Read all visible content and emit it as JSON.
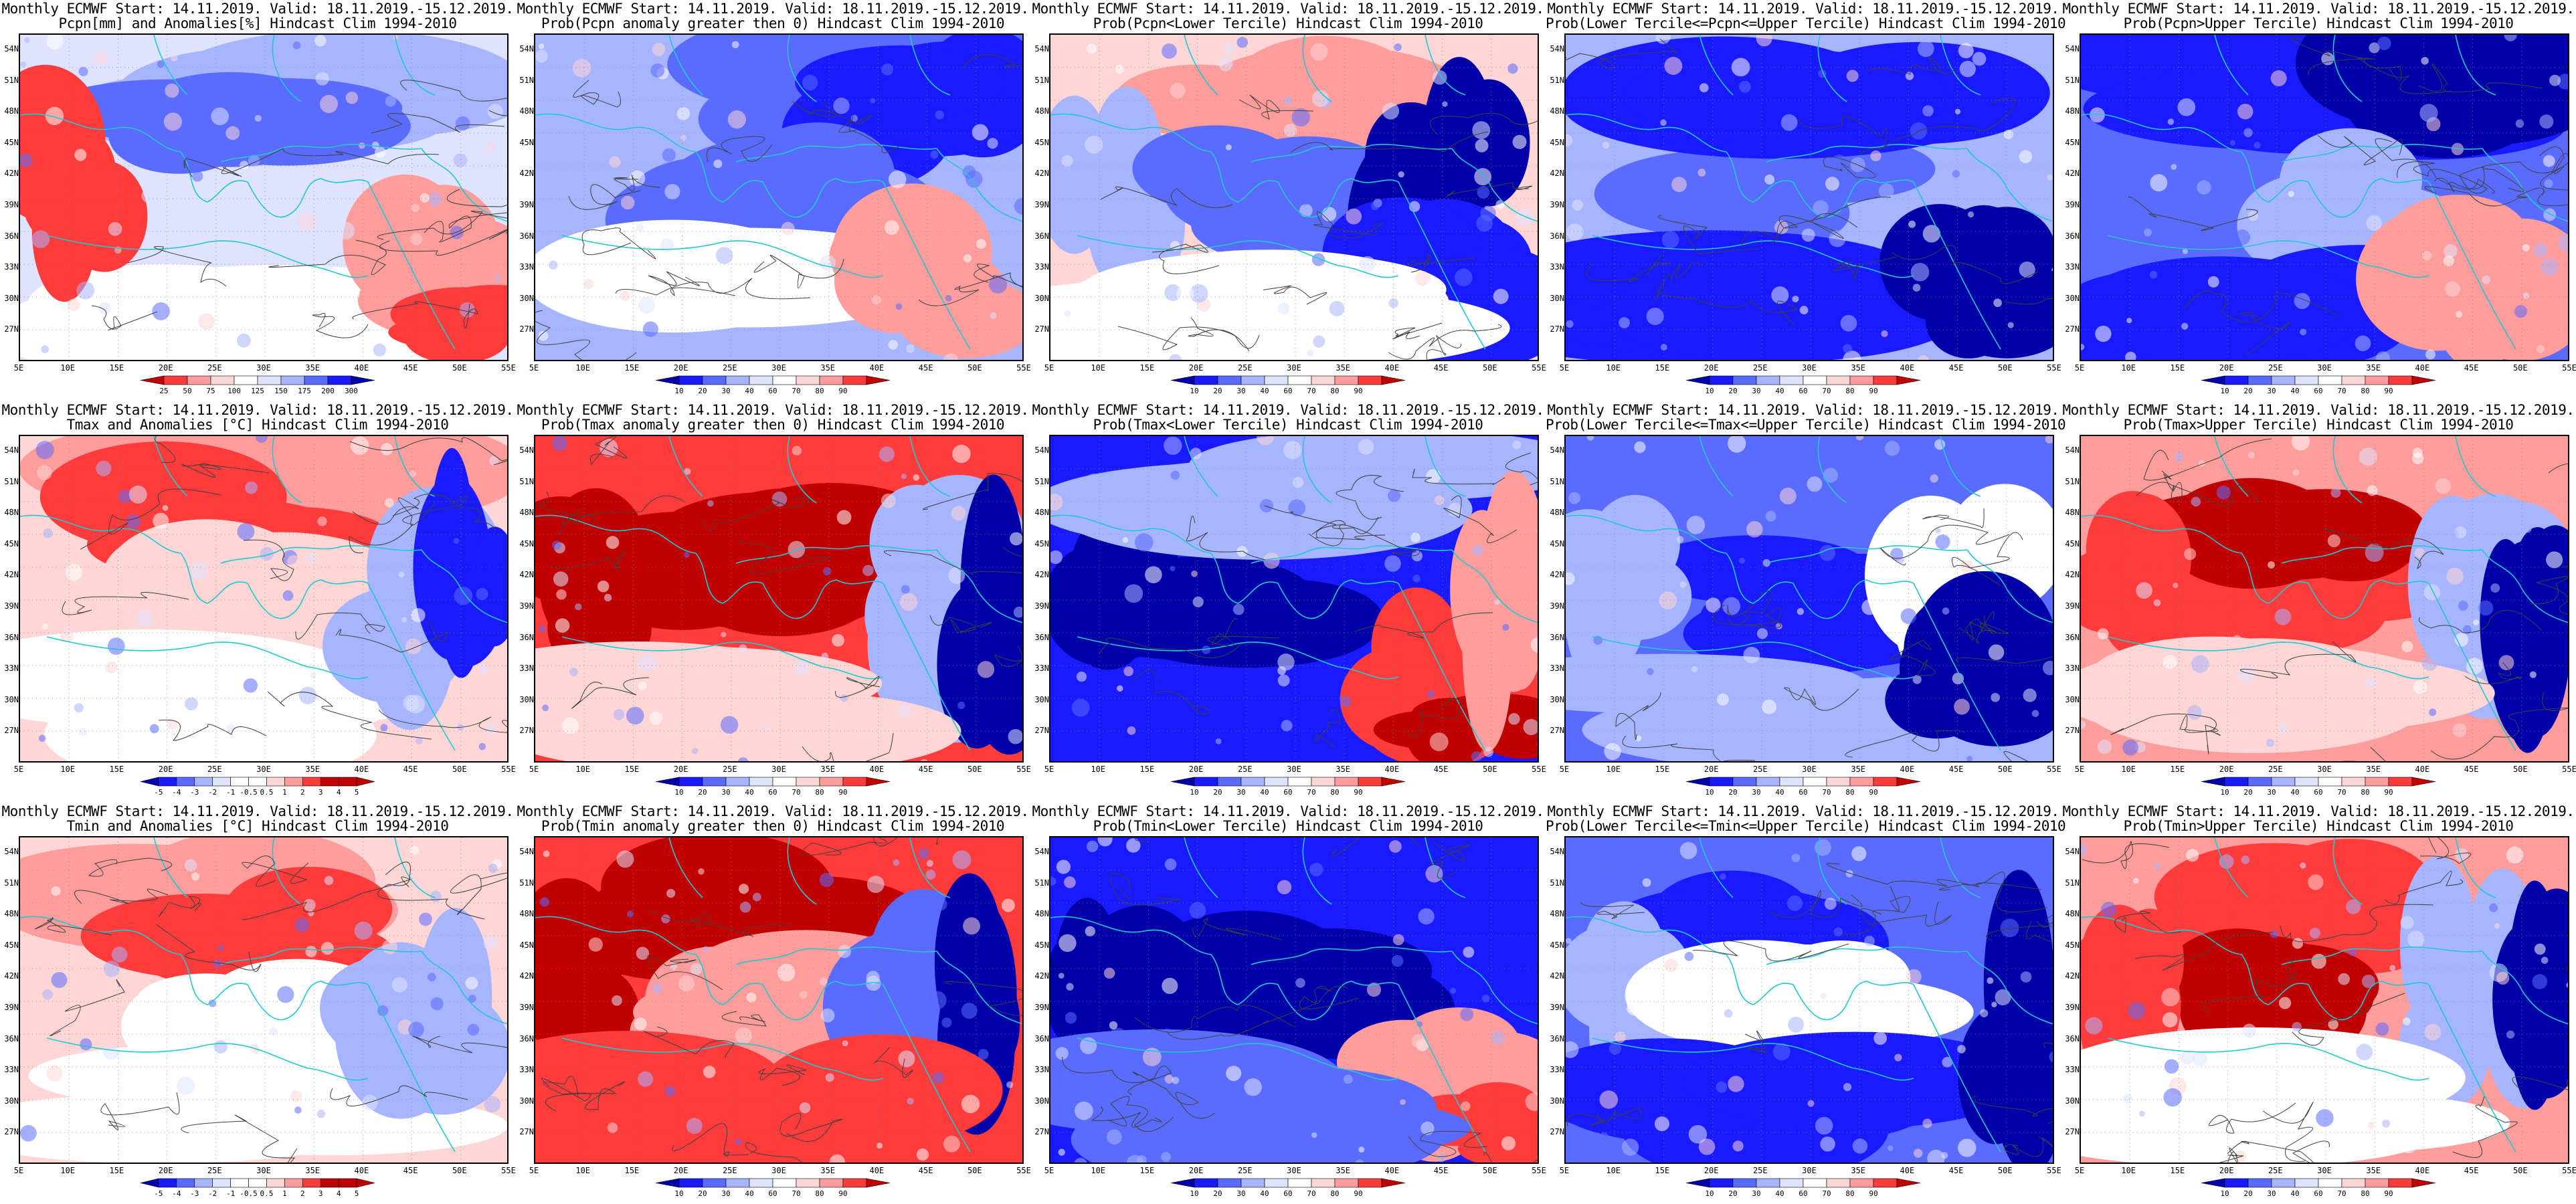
{
  "figure": {
    "common_title": "Monthly ECMWF Start: 14.11.2019. Valid: 18.11.2019.-15.12.2019.",
    "lat_ticks": [
      "54N",
      "51N",
      "48N",
      "45N",
      "42N",
      "39N",
      "36N",
      "33N",
      "30N",
      "27N"
    ],
    "lon_ticks": [
      "5E",
      "10E",
      "15E",
      "20E",
      "25E",
      "30E",
      "35E",
      "40E",
      "45E",
      "50E",
      "55E"
    ],
    "colors": {
      "dark_blue": "#0000a8",
      "blue": "#1a1aff",
      "mid_blue": "#5a6bff",
      "light_blue": "#a7b4ff",
      "pale_blue": "#dfe3ff",
      "white": "#ffffff",
      "pale_red": "#ffd6d6",
      "light_red": "#ff9c9c",
      "red": "#ff3b3b",
      "dark_red": "#c00000",
      "coast": "#20c8d0",
      "contour": "#404040"
    }
  },
  "rows": [
    {
      "variable": "Pcpn",
      "panels": [
        {
          "title_line2": "Pcpn[mm] and Anomalies[%] Hindcast Clim 1994-2010",
          "scheme": "anom_pcpn",
          "colorbar": [
            "25",
            "50",
            "75",
            "100",
            "125",
            "150",
            "175",
            "200",
            "300"
          ],
          "fill": "mostly blue north, red southeast"
        },
        {
          "title_line2": "Prob(Pcpn anomaly greater then 0) Hindcast Clim 1994-2010",
          "scheme": "prob",
          "colorbar": [
            "10",
            "20",
            "30",
            "40",
            "60",
            "70",
            "80",
            "90"
          ],
          "fill": "mostly blue"
        },
        {
          "title_line2": "Prob(Pcpn<Lower Tercile) Hindcast Clim 1994-2010",
          "scheme": "prob",
          "colorbar": [
            "10",
            "20",
            "30",
            "40",
            "60",
            "70",
            "80",
            "90"
          ],
          "fill": "mixed, blue central"
        },
        {
          "title_line2": "Prob(Lower Tercile<=Pcpn<=Upper Tercile) Hindcast Clim 1994-2010",
          "scheme": "prob",
          "colorbar": [
            "10",
            "20",
            "30",
            "40",
            "60",
            "70",
            "80",
            "90"
          ],
          "fill": "blue"
        },
        {
          "title_line2": "Prob(Pcpn>Upper Tercile) Hindcast Clim 1994-2010",
          "scheme": "prob",
          "colorbar": [
            "10",
            "20",
            "30",
            "40",
            "60",
            "70",
            "80",
            "90"
          ],
          "fill": "blue"
        }
      ]
    },
    {
      "variable": "Tmax",
      "panels": [
        {
          "title_line2": "Tmax and Anomalies [°C] Hindcast Clim 1994-2010",
          "scheme": "anom_temp",
          "colorbar": [
            "-5",
            "-4",
            "-3",
            "-2",
            "-1",
            "-0.5",
            "0.5",
            "1",
            "2",
            "3",
            "4",
            "5"
          ],
          "fill": "red west, blue east"
        },
        {
          "title_line2": "Prob(Tmax anomaly greater then 0) Hindcast Clim 1994-2010",
          "scheme": "prob",
          "colorbar": [
            "10",
            "20",
            "30",
            "40",
            "60",
            "70",
            "80",
            "90"
          ],
          "fill": "dark red west, blue east"
        },
        {
          "title_line2": "Prob(Tmax<Lower Tercile) Hindcast Clim 1994-2010",
          "scheme": "prob",
          "colorbar": [
            "10",
            "20",
            "30",
            "40",
            "60",
            "70",
            "80",
            "90"
          ],
          "fill": "dark blue, red southeast"
        },
        {
          "title_line2": "Prob(Lower Tercile<=Tmax<=Upper Tercile) Hindcast Clim 1994-2010",
          "scheme": "prob",
          "colorbar": [
            "10",
            "20",
            "30",
            "40",
            "60",
            "70",
            "80",
            "90"
          ],
          "fill": "blue mixed"
        },
        {
          "title_line2": "Prob(Tmax>Upper Tercile) Hindcast Clim 1994-2010",
          "scheme": "prob",
          "colorbar": [
            "10",
            "20",
            "30",
            "40",
            "60",
            "70",
            "80",
            "90"
          ],
          "fill": "red center, blue east"
        }
      ]
    },
    {
      "variable": "Tmin",
      "panels": [
        {
          "title_line2": "Tmin and Anomalies [°C] Hindcast Clim 1994-2010",
          "scheme": "anom_temp",
          "colorbar": [
            "-5",
            "-4",
            "-3",
            "-2",
            "-1",
            "-0.5",
            "0.5",
            "1",
            "2",
            "3",
            "4",
            "5"
          ],
          "fill": "red north, white south"
        },
        {
          "title_line2": "Prob(Tmin anomaly greater then 0) Hindcast Clim 1994-2010",
          "scheme": "prob",
          "colorbar": [
            "10",
            "20",
            "30",
            "40",
            "60",
            "70",
            "80",
            "90"
          ],
          "fill": "dark red west, blue east"
        },
        {
          "title_line2": "Prob(Tmin<Lower Tercile) Hindcast Clim 1994-2010",
          "scheme": "prob",
          "colorbar": [
            "10",
            "20",
            "30",
            "40",
            "60",
            "70",
            "80",
            "90"
          ],
          "fill": "dark blue, red southeast"
        },
        {
          "title_line2": "Prob(Lower Tercile<=Tmin<=Upper Tercile) Hindcast Clim 1994-2010",
          "scheme": "prob",
          "colorbar": [
            "10",
            "20",
            "30",
            "40",
            "60",
            "70",
            "80",
            "90"
          ],
          "fill": "blue"
        },
        {
          "title_line2": "Prob(Tmin>Upper Tercile) Hindcast Clim 1994-2010",
          "scheme": "prob",
          "colorbar": [
            "10",
            "20",
            "30",
            "40",
            "60",
            "70",
            "80",
            "90"
          ],
          "fill": "red center, blue east"
        }
      ]
    }
  ]
}
